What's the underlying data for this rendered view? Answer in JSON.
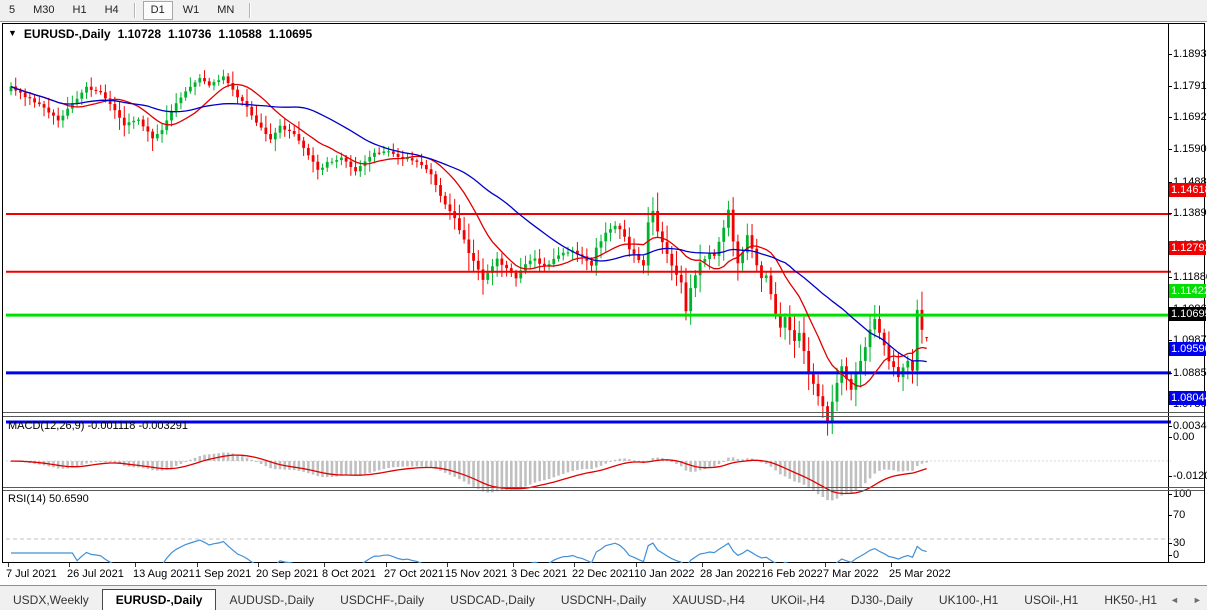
{
  "icons": {
    "collapse": "▼",
    "tab_scroll_left": "◄",
    "tab_scroll_right": "►"
  },
  "toolbar": {
    "items": [
      "5",
      "M30",
      "H1",
      "H4",
      "|",
      "D1",
      "W1",
      "MN",
      "|"
    ],
    "active": "D1"
  },
  "chart_header": {
    "symbol_label": "EURUSD-,Daily",
    "open": "1.10728",
    "high": "1.10736",
    "low": "1.10588",
    "close": "1.10695"
  },
  "macd_panel": {
    "label": "MACD(12,26,9)",
    "value_main": "-0.001118",
    "value_signal": "-0.003291",
    "axis": [
      {
        "label": "0.003408",
        "value": 0.003408
      },
      {
        "label": "0.00",
        "value": 0
      },
      {
        "label": "-0.01205",
        "value": -0.01205
      }
    ]
  },
  "rsi_panel": {
    "label": "RSI(14)",
    "value": "50.6590",
    "axis": [
      {
        "label": "100",
        "value": 100
      },
      {
        "label": "70",
        "value": 70
      },
      {
        "label": "30",
        "value": 30
      },
      {
        "label": "0",
        "value": 0
      }
    ],
    "dashed_levels": [
      70,
      30
    ]
  },
  "price_axis": {
    "ticks": [
      {
        "label": "1.18930",
        "price": 1.1893
      },
      {
        "label": "1.17910",
        "price": 1.1791
      },
      {
        "label": "1.16920",
        "price": 1.1692
      },
      {
        "label": "1.15900",
        "price": 1.159
      },
      {
        "label": "1.14880",
        "price": 1.1488
      },
      {
        "label": "1.13890",
        "price": 1.1389
      },
      {
        "label": "1.12870",
        "price": 1.1287
      },
      {
        "label": "1.11880",
        "price": 1.1188
      },
      {
        "label": "1.10860",
        "price": 1.1086
      },
      {
        "label": "1.09870",
        "price": 1.0987
      },
      {
        "label": "1.08850",
        "price": 1.0885
      },
      {
        "label": "1.07860",
        "price": 1.0786
      }
    ]
  },
  "levels": [
    {
      "label": "1.14618",
      "price": 1.14618,
      "color": "#f00000",
      "weight": 2
    },
    {
      "label": "1.12792",
      "price": 1.12792,
      "color": "#f00000",
      "weight": 2
    },
    {
      "label": "1.11422",
      "price": 1.11422,
      "color": "#00e000",
      "weight": 3
    },
    {
      "label": "1.09596",
      "price": 1.09596,
      "color": "#0000f0",
      "weight": 3
    },
    {
      "label": "1.08044",
      "price": 1.08044,
      "color": "#0000f0",
      "weight": 3
    }
  ],
  "current_price": {
    "label": "1.10695",
    "price": 1.10695,
    "badge_color": "#000000"
  },
  "date_axis": {
    "labels": [
      {
        "text": "7 Jul 2021",
        "candle_index": 0
      },
      {
        "text": "26 Jul 2021",
        "candle_index": 13
      },
      {
        "text": "13 Aug 2021",
        "candle_index": 27
      },
      {
        "text": "1 Sep 2021",
        "candle_index": 40
      },
      {
        "text": "20 Sep 2021",
        "candle_index": 53
      },
      {
        "text": "8 Oct 2021",
        "candle_index": 67
      },
      {
        "text": "27 Oct 2021",
        "candle_index": 80
      },
      {
        "text": "15 Nov 2021",
        "candle_index": 93
      },
      {
        "text": "3 Dec 2021",
        "candle_index": 107
      },
      {
        "text": "22 Dec 2021",
        "candle_index": 120
      },
      {
        "text": "10 Jan 2022",
        "candle_index": 133
      },
      {
        "text": "28 Jan 2022",
        "candle_index": 147
      },
      {
        "text": "16 Feb 2022",
        "candle_index": 160
      },
      {
        "text": "7 Mar 2022",
        "candle_index": 173
      },
      {
        "text": "25 Mar 2022",
        "candle_index": 187
      }
    ]
  },
  "tabs": {
    "items": [
      {
        "label": "USDX,Weekly",
        "active": false
      },
      {
        "label": "EURUSD-,Daily",
        "active": true
      },
      {
        "label": "AUDUSD-,Daily",
        "active": false
      },
      {
        "label": "USDCHF-,Daily",
        "active": false
      },
      {
        "label": "USDCAD-,Daily",
        "active": false
      },
      {
        "label": "USDCNH-,Daily",
        "active": false
      },
      {
        "label": "XAUUSD-,H4",
        "active": false
      },
      {
        "label": "UKOil-,H4",
        "active": false
      },
      {
        "label": "DJ30-,Daily",
        "active": false
      },
      {
        "label": "UK100-,H1",
        "active": false
      },
      {
        "label": "USOil-,H1",
        "active": false
      },
      {
        "label": "HK50-,H1",
        "active": false
      }
    ]
  },
  "colors": {
    "bull": "#00b32c",
    "bear": "#f40000",
    "ma_fast": "#e00000",
    "ma_slow": "#0000c8",
    "macd_histogram": "#c0c0c0",
    "macd_signal": "#e00000",
    "rsi_line": "#4090d8",
    "dashed_level": "#c0c0c0",
    "axis_text": "#000000"
  },
  "chart_data": {
    "type": "candlestick",
    "title": "EURUSD-,Daily",
    "candles_count": 195,
    "ylim": [
      1.07603,
      1.19864
    ],
    "x_range": {
      "first_label": "7 Jul 2021",
      "last_label": "25 Mar 2022"
    },
    "ohlc_current": {
      "open": 1.10728,
      "high": 1.10736,
      "low": 1.10588,
      "close": 1.10695
    },
    "close_path_anchors": [
      [
        0,
        1.1862
      ],
      [
        3,
        1.1832
      ],
      [
        6,
        1.181
      ],
      [
        10,
        1.1758
      ],
      [
        13,
        1.1812
      ],
      [
        16,
        1.1862
      ],
      [
        19,
        1.1843
      ],
      [
        22,
        1.1788
      ],
      [
        24,
        1.1742
      ],
      [
        27,
        1.1762
      ],
      [
        30,
        1.17
      ],
      [
        32,
        1.1725
      ],
      [
        34,
        1.179
      ],
      [
        37,
        1.185
      ],
      [
        40,
        1.189
      ],
      [
        42,
        1.1866
      ],
      [
        45,
        1.1896
      ],
      [
        47,
        1.1852
      ],
      [
        50,
        1.1798
      ],
      [
        52,
        1.175
      ],
      [
        55,
        1.1695
      ],
      [
        57,
        1.1738
      ],
      [
        60,
        1.1716
      ],
      [
        63,
        1.165
      ],
      [
        65,
        1.1598
      ],
      [
        67,
        1.1625
      ],
      [
        70,
        1.164
      ],
      [
        73,
        1.1598
      ],
      [
        75,
        1.1628
      ],
      [
        77,
        1.1652
      ],
      [
        80,
        1.166
      ],
      [
        82,
        1.164
      ],
      [
        85,
        1.1632
      ],
      [
        87,
        1.1618
      ],
      [
        89,
        1.1586
      ],
      [
        91,
        1.1518
      ],
      [
        94,
        1.1448
      ],
      [
        96,
        1.1378
      ],
      [
        97,
        1.1338
      ],
      [
        99,
        1.1288
      ],
      [
        100,
        1.1252
      ],
      [
        102,
        1.1298
      ],
      [
        103,
        1.132
      ],
      [
        105,
        1.1288
      ],
      [
        107,
        1.1258
      ],
      [
        109,
        1.1305
      ],
      [
        111,
        1.1322
      ],
      [
        113,
        1.1293
      ],
      [
        115,
        1.1318
      ],
      [
        117,
        1.134
      ],
      [
        119,
        1.1346
      ],
      [
        121,
        1.1328
      ],
      [
        123,
        1.1298
      ],
      [
        124,
        1.1358
      ],
      [
        126,
        1.14
      ],
      [
        128,
        1.1428
      ],
      [
        130,
        1.1393
      ],
      [
        131,
        1.1353
      ],
      [
        133,
        1.1318
      ],
      [
        134,
        1.1298
      ],
      [
        135,
        1.1438
      ],
      [
        136,
        1.1472
      ],
      [
        137,
        1.1408
      ],
      [
        139,
        1.1338
      ],
      [
        140,
        1.1298
      ],
      [
        142,
        1.1248
      ],
      [
        143,
        1.1158
      ],
      [
        144,
        1.1228
      ],
      [
        145,
        1.1268
      ],
      [
        146,
        1.1308
      ],
      [
        148,
        1.1338
      ],
      [
        149,
        1.1328
      ],
      [
        151,
        1.1418
      ],
      [
        152,
        1.1478
      ],
      [
        153,
        1.1378
      ],
      [
        154,
        1.1308
      ],
      [
        155,
        1.1338
      ],
      [
        156,
        1.1392
      ],
      [
        157,
        1.1352
      ],
      [
        158,
        1.1302
      ],
      [
        159,
        1.1258
      ],
      [
        160,
        1.1268
      ],
      [
        161,
        1.1208
      ],
      [
        162,
        1.1148
      ],
      [
        163,
        1.1103
      ],
      [
        164,
        1.1133
      ],
      [
        165,
        1.1093
      ],
      [
        166,
        1.1058
      ],
      [
        167,
        1.1088
      ],
      [
        168,
        1.1028
      ],
      [
        169,
        1.0958
      ],
      [
        170,
        1.0928
      ],
      [
        171,
        1.0888
      ],
      [
        172,
        1.0852
      ],
      [
        173,
        1.0808
      ],
      [
        174,
        1.0868
      ],
      [
        175,
        1.0928
      ],
      [
        176,
        1.0984
      ],
      [
        177,
        1.0938
      ],
      [
        178,
        1.0908
      ],
      [
        179,
        1.0958
      ],
      [
        180,
        1.0998
      ],
      [
        181,
        1.1038
      ],
      [
        182,
        1.1098
      ],
      [
        183,
        1.1133
      ],
      [
        184,
        1.1088
      ],
      [
        185,
        1.1048
      ],
      [
        186,
        1.0998
      ],
      [
        187,
        1.0978
      ],
      [
        188,
        1.0943
      ],
      [
        189,
        1.0978
      ],
      [
        190,
        1.0998
      ],
      [
        191,
        1.0968
      ],
      [
        192,
        1.1158
      ],
      [
        193,
        1.1098
      ],
      [
        194,
        1.10695
      ]
    ],
    "moving_averages": [
      {
        "name": "fast",
        "period": 12,
        "color": "#e00000"
      },
      {
        "name": "slow",
        "period": 30,
        "color": "#0000c8"
      }
    ],
    "horizontal_lines": [
      1.14618,
      1.12792,
      1.11422,
      1.09596,
      1.08044
    ],
    "indicators": [
      {
        "name": "MACD",
        "params": [
          12,
          26,
          9
        ],
        "current_main": -0.001118,
        "current_signal": -0.003291,
        "ylim": [
          -0.01205,
          0.003408
        ]
      },
      {
        "name": "RSI",
        "params": [
          14
        ],
        "current": 50.659,
        "ylim": [
          0,
          100
        ],
        "levels": [
          30,
          70
        ]
      }
    ]
  }
}
